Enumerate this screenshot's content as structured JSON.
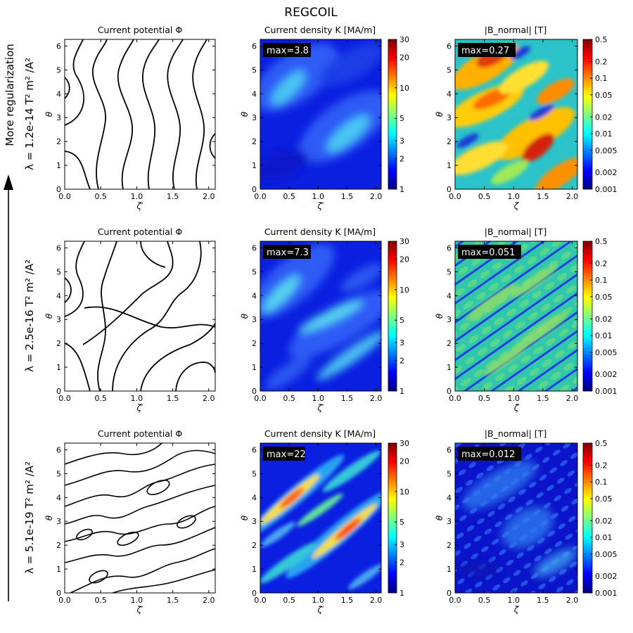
{
  "figure": {
    "title": "REGCOIL",
    "arrow_label": "More regularization"
  },
  "chart_data": {
    "type": "heatmap",
    "x_range": [
      0.0,
      2.09
    ],
    "y_range": [
      0.0,
      6.28
    ],
    "x_ticks": [
      "0.0",
      "0.5",
      "1.0",
      "1.5",
      "2.0"
    ],
    "x_tick_values": [
      0,
      0.5,
      1.0,
      1.5,
      2.0
    ],
    "y_ticks": [
      "0",
      "1",
      "2",
      "3",
      "4",
      "5",
      "6"
    ],
    "y_tick_values": [
      0,
      1,
      2,
      3,
      4,
      5,
      6
    ],
    "ylabel": "θ",
    "column_titles": [
      "Current potential Φ",
      "Current density K [MA/m]",
      "|B_normal| [T]"
    ],
    "column_xlabels": [
      "ζ′",
      "ζ′",
      "ζ"
    ],
    "colorbars": {
      "K": {
        "ticks": [
          "30",
          "20",
          "10",
          "5",
          "3",
          "2",
          "1"
        ],
        "tick_values": [
          30,
          20,
          10,
          5,
          3,
          2,
          1
        ],
        "range": [
          1,
          30
        ],
        "scale": "log"
      },
      "B": {
        "ticks": [
          "0.5",
          "0.2",
          "0.1",
          "0.05",
          "0.02",
          "0.01",
          "0.005",
          "0.002",
          "0.001"
        ],
        "tick_values": [
          0.5,
          0.2,
          0.1,
          0.05,
          0.02,
          0.01,
          0.005,
          0.002,
          0.001
        ],
        "range": [
          0.001,
          0.5
        ],
        "scale": "log"
      }
    },
    "rows": [
      {
        "lambda": "λ = 1.2e-14  T² m² /A²",
        "K_max": "max=3.8",
        "B_max": "max=0.27",
        "K_max_value": 3.8,
        "B_max_value": 0.27
      },
      {
        "lambda": "λ = 2.5e-16  T² m² /A²",
        "K_max": "max=7.3",
        "B_max": "max=0.051",
        "K_max_value": 7.3,
        "B_max_value": 0.051
      },
      {
        "lambda": "λ = 5.1e-19  T² m² /A²",
        "K_max": "max=22",
        "B_max": "max=0.012",
        "K_max_value": 22,
        "B_max_value": 0.012
      }
    ]
  }
}
